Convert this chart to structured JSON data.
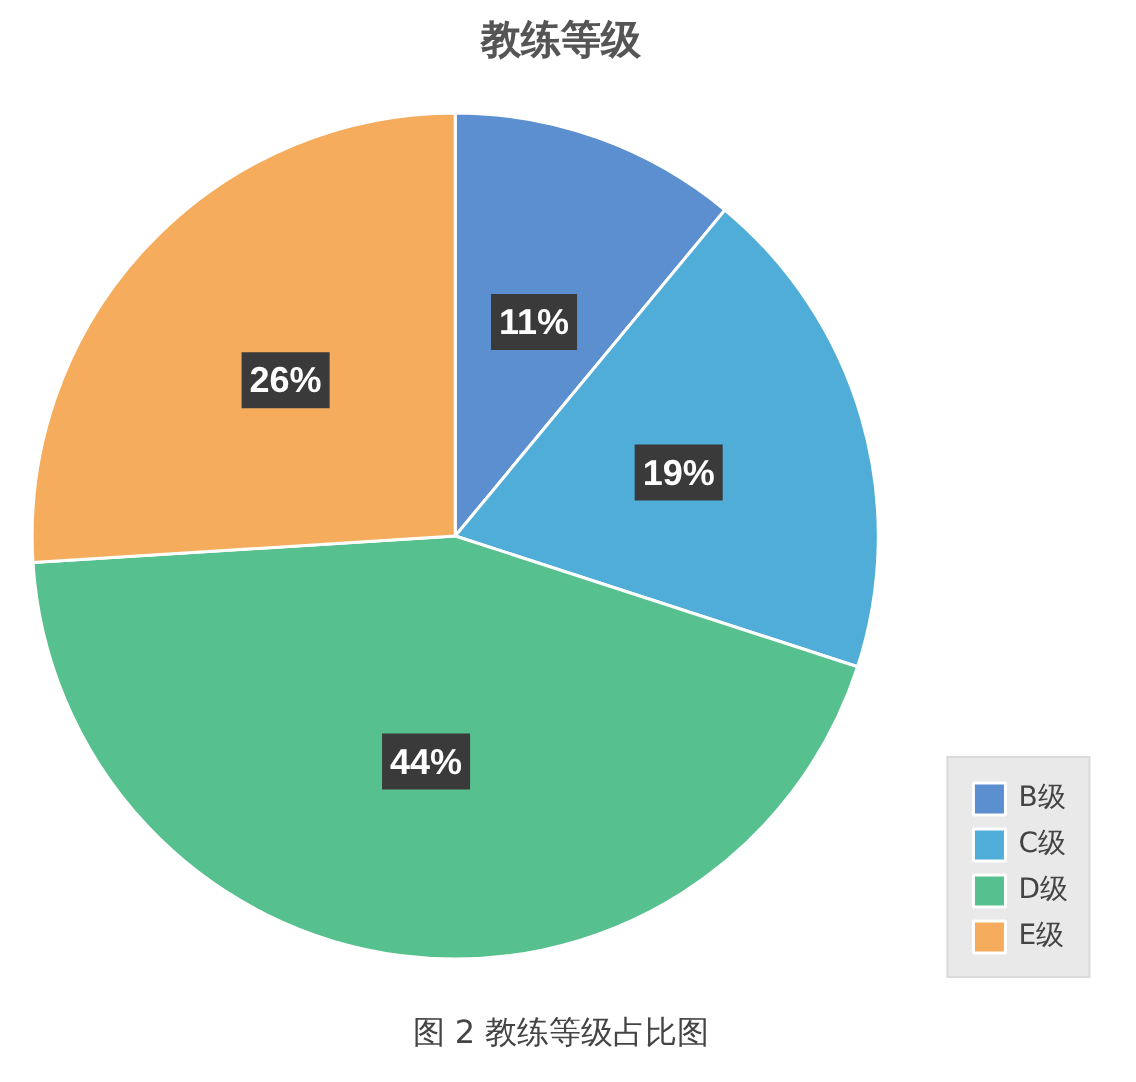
{
  "chart_data": {
    "type": "pie",
    "title": "教练等级",
    "categories": [
      "B级",
      "C级",
      "D级",
      "E级"
    ],
    "values": [
      11,
      19,
      44,
      26
    ],
    "colors": [
      "#5b8fd0",
      "#4fadd8",
      "#57c08f",
      "#f5ad5d"
    ],
    "value_labels": [
      "11%",
      "19%",
      "44%",
      "26%"
    ],
    "legend": "bottom right",
    "annotations": [
      "图 2 教练等级占比图"
    ]
  }
}
